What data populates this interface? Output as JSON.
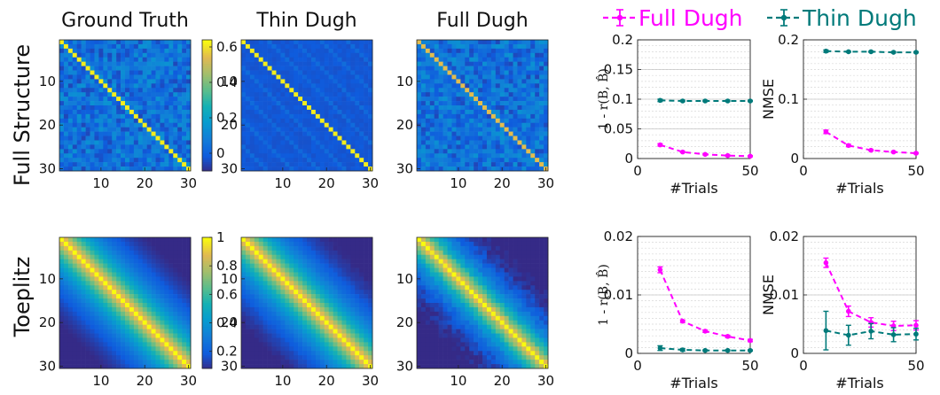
{
  "row_labels": [
    "Full Structure",
    "Toeplitz"
  ],
  "chart_data": [
    {
      "type": "heatmap",
      "row": "Full Structure",
      "title": "Ground Truth",
      "size": 30,
      "pattern": "full",
      "diag_value": 0.62,
      "off_diag_range": [
        -0.05,
        0.15
      ],
      "colorbar_ticks": [
        "0.6",
        "0.4",
        "0.2",
        "0"
      ],
      "colorbar_range": [
        -0.1,
        0.64
      ],
      "x_ticks": [
        "10",
        "20",
        "30"
      ],
      "y_ticks": [
        "10",
        "20",
        "30"
      ],
      "colormap": "parula"
    },
    {
      "type": "heatmap",
      "row": "Full Structure",
      "title": "Thin Dugh",
      "size": 30,
      "pattern": "banded",
      "diag_value": 0.62,
      "off_diag_range": [
        -0.05,
        0.05
      ],
      "x_ticks": [
        "10",
        "20",
        "30"
      ],
      "y_ticks": [
        "10",
        "20",
        "30"
      ],
      "colormap": "parula"
    },
    {
      "type": "heatmap",
      "row": "Full Structure",
      "title": "Full Dugh",
      "size": 30,
      "pattern": "full",
      "diag_value": 0.55,
      "off_diag_range": [
        -0.05,
        0.15
      ],
      "x_ticks": [
        "10",
        "20",
        "30"
      ],
      "y_ticks": [
        "10",
        "20",
        "30"
      ],
      "colormap": "parula"
    },
    {
      "type": "line",
      "row": "Full Structure",
      "ylabel": "1 - r(B, B̂)",
      "xlabel": "#Trials",
      "xlim": [
        0,
        50
      ],
      "ylim": [
        0,
        0.2
      ],
      "x_ticks": [
        "0",
        "50"
      ],
      "y_ticks": [
        "0",
        "0.05",
        "0.1",
        "0.15",
        "0.2"
      ],
      "grid": true,
      "series": [
        {
          "name": "Full Dugh",
          "color": "#ff00ff",
          "x": [
            10,
            20,
            30,
            40,
            50
          ],
          "y": [
            0.023,
            0.011,
            0.007,
            0.005,
            0.004
          ],
          "err": [
            0.002,
            0.001,
            0.001,
            0.001,
            0.001
          ]
        },
        {
          "name": "Thin Dugh",
          "color": "#007a7a",
          "x": [
            10,
            20,
            30,
            40,
            50
          ],
          "y": [
            0.098,
            0.097,
            0.097,
            0.097,
            0.097
          ],
          "err": [
            0.002,
            0.001,
            0.001,
            0.001,
            0.001
          ]
        }
      ]
    },
    {
      "type": "line",
      "row": "Full Structure",
      "ylabel": "NMSE",
      "xlabel": "#Trials",
      "xlim": [
        0,
        50
      ],
      "ylim": [
        0,
        0.2
      ],
      "x_ticks": [
        "0",
        "50"
      ],
      "y_ticks": [
        "0",
        "0.1",
        "0.2"
      ],
      "grid": true,
      "series": [
        {
          "name": "Full Dugh",
          "color": "#ff00ff",
          "x": [
            10,
            20,
            30,
            40,
            50
          ],
          "y": [
            0.045,
            0.022,
            0.014,
            0.011,
            0.009
          ],
          "err": [
            0.003,
            0.002,
            0.001,
            0.001,
            0.001
          ]
        },
        {
          "name": "Thin Dugh",
          "color": "#007a7a",
          "x": [
            10,
            20,
            30,
            40,
            50
          ],
          "y": [
            0.181,
            0.18,
            0.18,
            0.179,
            0.179
          ],
          "err": [
            0.002,
            0.001,
            0.001,
            0.001,
            0.001
          ]
        }
      ]
    },
    {
      "type": "heatmap",
      "row": "Toeplitz",
      "title": "",
      "size": 30,
      "pattern": "toeplitz",
      "decay": 0.88,
      "noise": 0,
      "colorbar_ticks": [
        "1",
        "0.8",
        "0.6",
        "0.4",
        "0.2"
      ],
      "colorbar_range": [
        0.08,
        1.0
      ],
      "x_ticks": [
        "10",
        "20",
        "30"
      ],
      "y_ticks": [
        "10",
        "20",
        "30"
      ],
      "colormap": "parula"
    },
    {
      "type": "heatmap",
      "row": "Toeplitz",
      "title": "",
      "size": 30,
      "pattern": "toeplitz",
      "decay": 0.88,
      "noise": 0.01,
      "x_ticks": [
        "10",
        "20",
        "30"
      ],
      "y_ticks": [
        "10",
        "20",
        "30"
      ],
      "colormap": "parula"
    },
    {
      "type": "heatmap",
      "row": "Toeplitz",
      "title": "",
      "size": 30,
      "pattern": "toeplitz",
      "decay": 0.85,
      "noise": 0.04,
      "x_ticks": [
        "10",
        "20",
        "30"
      ],
      "y_ticks": [
        "10",
        "20",
        "30"
      ],
      "colormap": "parula"
    },
    {
      "type": "line",
      "row": "Toeplitz",
      "ylabel": "1 - r(B, B̂)",
      "xlabel": "#Trials",
      "xlim": [
        0,
        50
      ],
      "ylim": [
        0,
        0.02
      ],
      "x_ticks": [
        "0",
        "50"
      ],
      "y_ticks": [
        "0",
        "0.01",
        "0.02"
      ],
      "grid": true,
      "series": [
        {
          "name": "Full Dugh",
          "color": "#ff00ff",
          "x": [
            10,
            20,
            30,
            40,
            50
          ],
          "y": [
            0.0143,
            0.0055,
            0.0038,
            0.0029,
            0.0022
          ],
          "err": [
            0.0005,
            0.0002,
            0.0002,
            0.0002,
            0.0002
          ]
        },
        {
          "name": "Thin Dugh",
          "color": "#007a7a",
          "x": [
            10,
            20,
            30,
            40,
            50
          ],
          "y": [
            0.0009,
            0.0006,
            0.0005,
            0.0005,
            0.0005
          ],
          "err": [
            0.0004,
            0.0002,
            0.0001,
            0.0001,
            0.0001
          ]
        }
      ]
    },
    {
      "type": "line",
      "row": "Toeplitz",
      "ylabel": "NMSE",
      "xlabel": "#Trials",
      "xlim": [
        0,
        50
      ],
      "ylim": [
        0,
        0.02
      ],
      "x_ticks": [
        "0",
        "50"
      ],
      "y_ticks": [
        "0",
        "0.01",
        "0.02"
      ],
      "grid": true,
      "series": [
        {
          "name": "Full Dugh",
          "color": "#ff00ff",
          "x": [
            10,
            20,
            30,
            40,
            50
          ],
          "y": [
            0.0155,
            0.0072,
            0.0053,
            0.0047,
            0.0048
          ],
          "err": [
            0.0008,
            0.0009,
            0.0008,
            0.0008,
            0.0008
          ]
        },
        {
          "name": "Thin Dugh",
          "color": "#007a7a",
          "x": [
            10,
            20,
            30,
            40,
            50
          ],
          "y": [
            0.0039,
            0.0031,
            0.0038,
            0.0032,
            0.0033
          ],
          "err": [
            0.0033,
            0.0017,
            0.0013,
            0.0012,
            0.001
          ]
        }
      ]
    }
  ],
  "legend": {
    "placement": "top",
    "items": [
      {
        "name": "Full Dugh",
        "color": "#ff00ff"
      },
      {
        "name": "Thin Dugh",
        "color": "#007a7a"
      }
    ]
  }
}
